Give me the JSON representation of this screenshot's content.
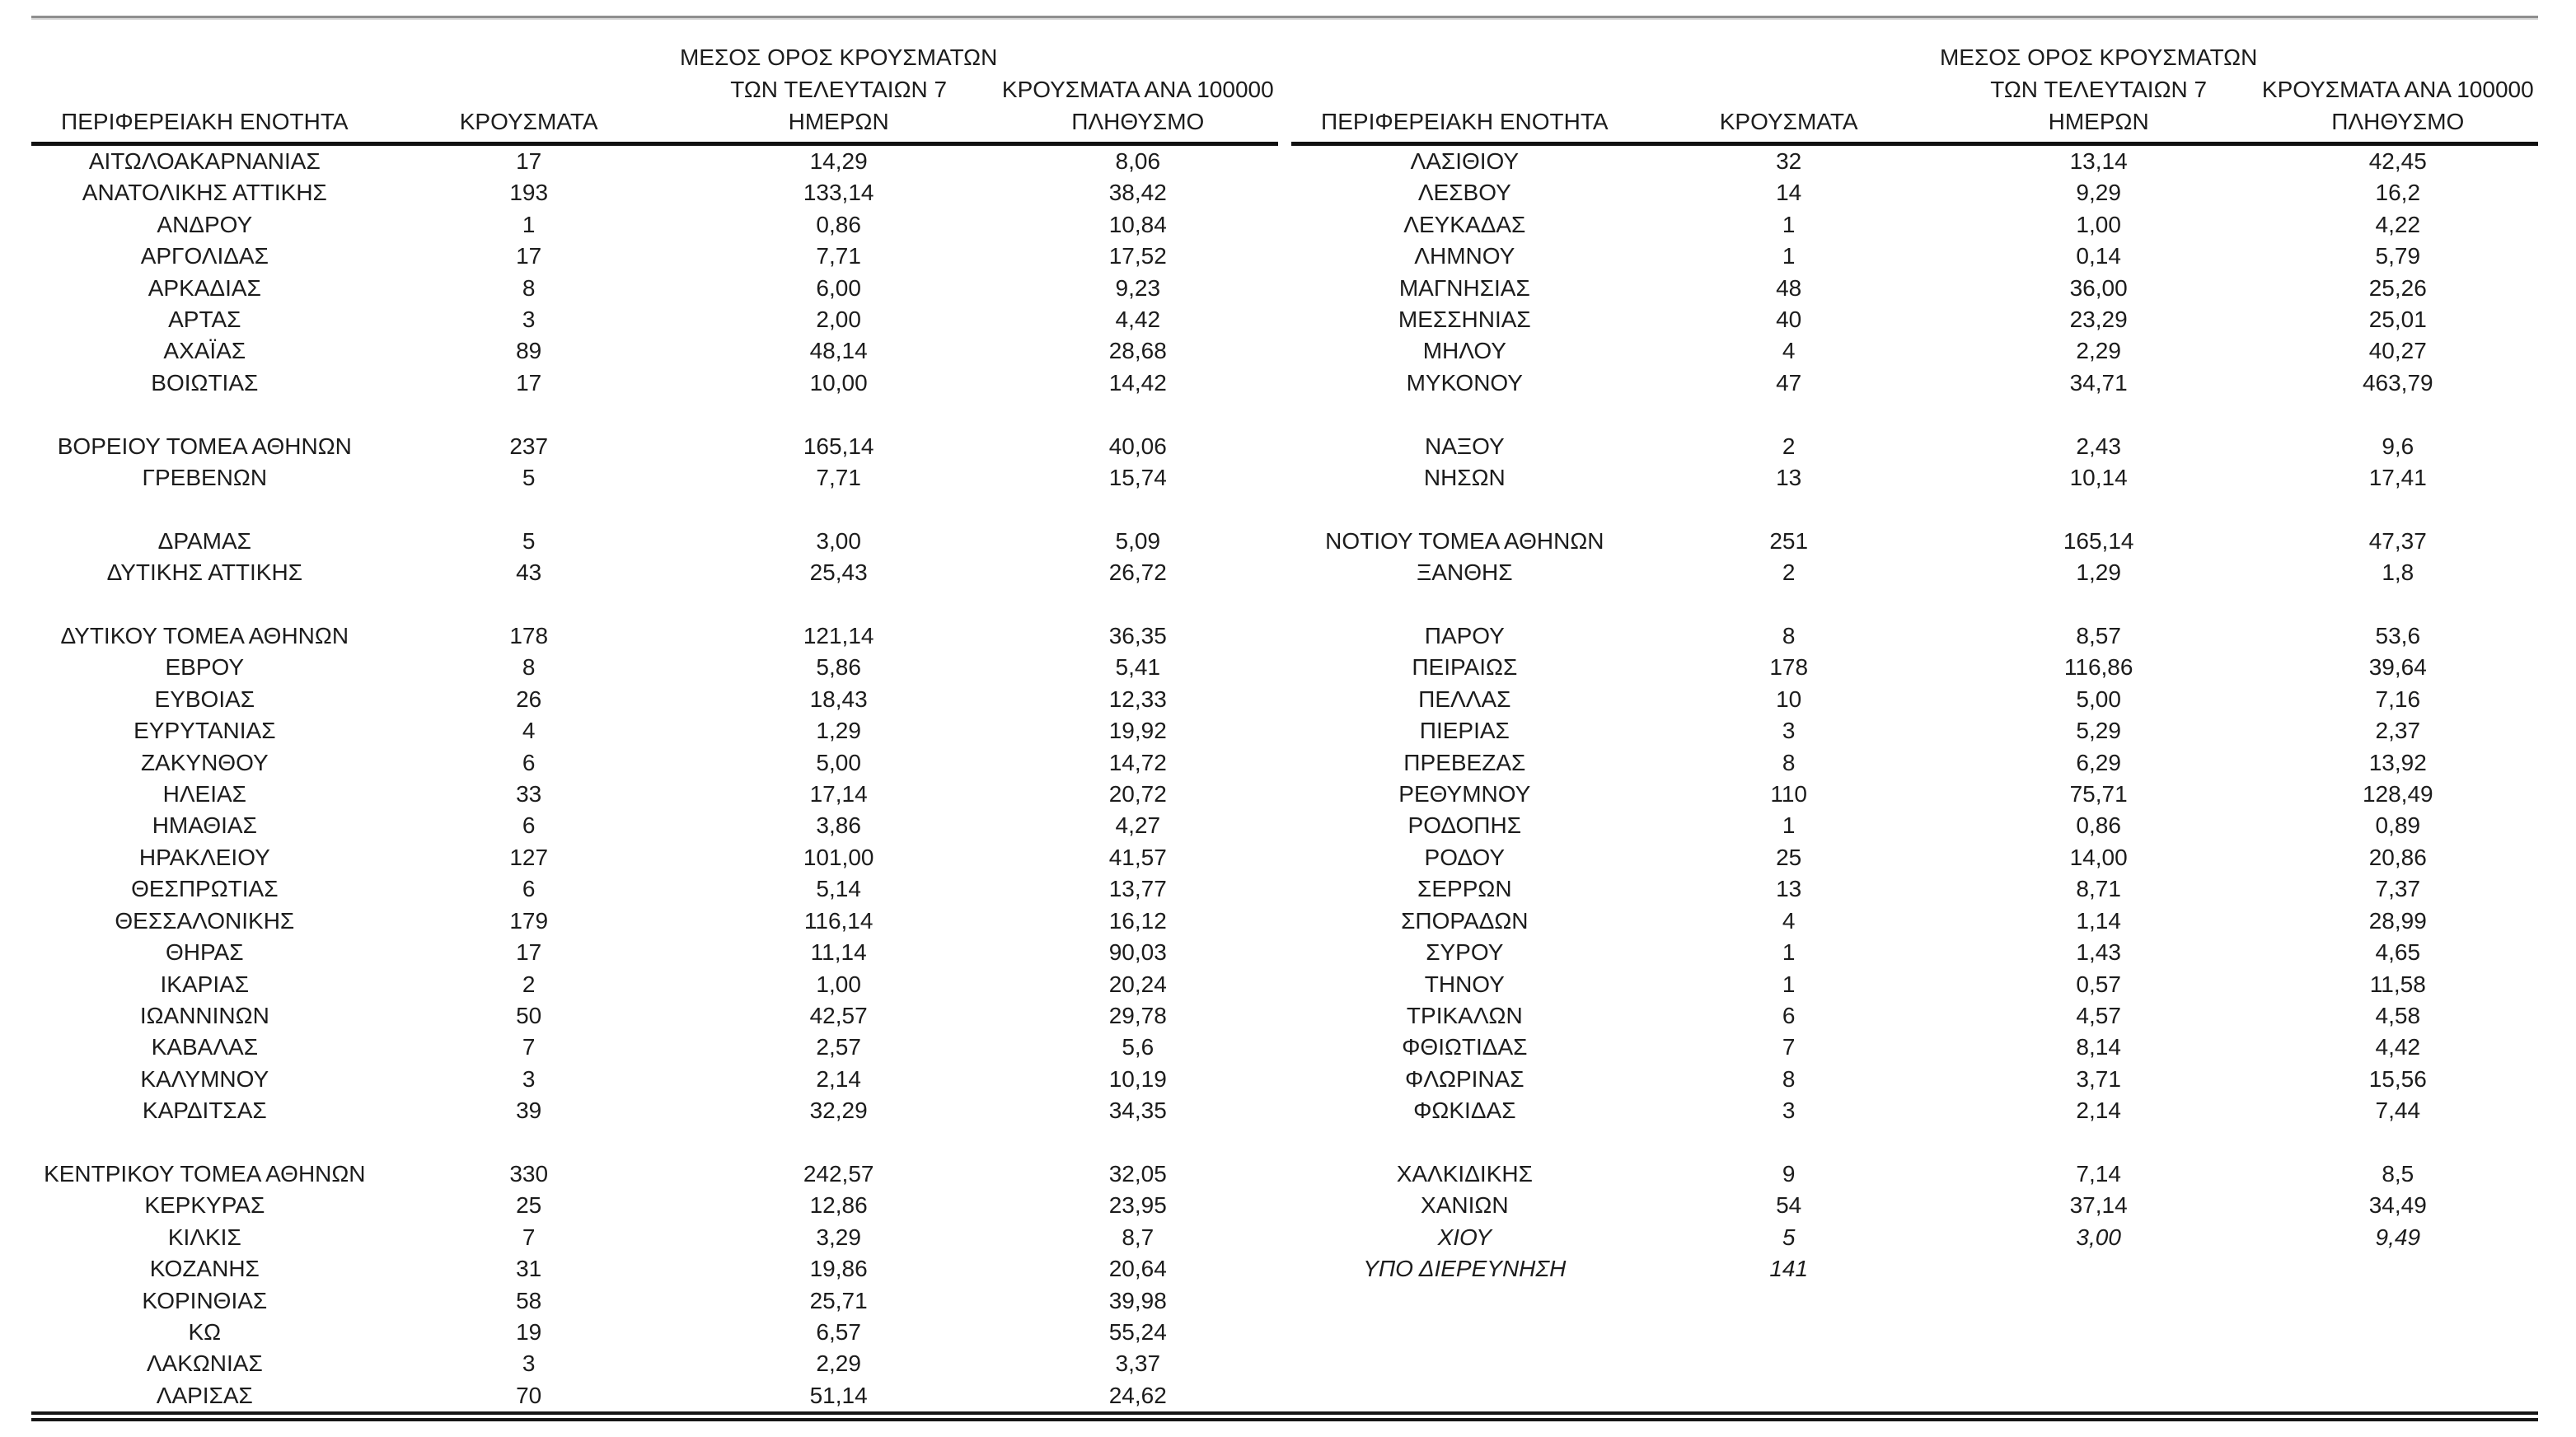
{
  "headers": {
    "region": "ΠΕΡΙΦΕΡΕΙΑΚΗ ΕΝΟΤΗΤΑ",
    "cases": "ΚΡΟΥΣΜΑΤΑ",
    "avg7_lines": [
      "ΜΕΣΟΣ ΟΡΟΣ ΚΡΟΥΣΜΑΤΩΝ",
      "ΤΩΝ ΤΕΛΕΥΤΑΙΩΝ 7",
      "ΗΜΕΡΩΝ"
    ],
    "per100k_lines": [
      "ΚΡΟΥΣΜΑΤΑ ΑΝΑ 100000",
      "ΠΛΗΘΥΣΜΟ"
    ]
  },
  "tables": [
    {
      "rows": [
        {
          "region": "ΑΙΤΩΛΟΑΚΑΡΝΑΝΙΑΣ",
          "cases": "17",
          "avg7": "14,29",
          "per100k": "8,06"
        },
        {
          "region": "ΑΝΑΤΟΛΙΚΗΣ ΑΤΤΙΚΗΣ",
          "cases": "193",
          "avg7": "133,14",
          "per100k": "38,42"
        },
        {
          "region": "ΑΝΔΡΟΥ",
          "cases": "1",
          "avg7": "0,86",
          "per100k": "10,84"
        },
        {
          "region": "ΑΡΓΟΛΙΔΑΣ",
          "cases": "17",
          "avg7": "7,71",
          "per100k": "17,52"
        },
        {
          "region": "ΑΡΚΑΔΙΑΣ",
          "cases": "8",
          "avg7": "6,00",
          "per100k": "9,23"
        },
        {
          "region": "ΑΡΤΑΣ",
          "cases": "3",
          "avg7": "2,00",
          "per100k": "4,42"
        },
        {
          "region": "ΑΧΑΪΑΣ",
          "cases": "89",
          "avg7": "48,14",
          "per100k": "28,68"
        },
        {
          "region": "ΒΟΙΩΤΙΑΣ",
          "cases": "17",
          "avg7": "10,00",
          "per100k": "14,42"
        },
        {
          "blank": true
        },
        {
          "region": "ΒΟΡΕΙΟΥ ΤΟΜΕΑ ΑΘΗΝΩΝ",
          "cases": "237",
          "avg7": "165,14",
          "per100k": "40,06"
        },
        {
          "region": "ΓΡΕΒΕΝΩΝ",
          "cases": "5",
          "avg7": "7,71",
          "per100k": "15,74"
        },
        {
          "blank": true
        },
        {
          "region": "ΔΡΑΜΑΣ",
          "cases": "5",
          "avg7": "3,00",
          "per100k": "5,09"
        },
        {
          "region": "ΔΥΤΙΚΗΣ ΑΤΤΙΚΗΣ",
          "cases": "43",
          "avg7": "25,43",
          "per100k": "26,72"
        },
        {
          "blank": true
        },
        {
          "region": "ΔΥΤΙΚΟΥ ΤΟΜΕΑ ΑΘΗΝΩΝ",
          "cases": "178",
          "avg7": "121,14",
          "per100k": "36,35"
        },
        {
          "region": "ΕΒΡΟΥ",
          "cases": "8",
          "avg7": "5,86",
          "per100k": "5,41"
        },
        {
          "region": "ΕΥΒΟΙΑΣ",
          "cases": "26",
          "avg7": "18,43",
          "per100k": "12,33"
        },
        {
          "region": "ΕΥΡΥΤΑΝΙΑΣ",
          "cases": "4",
          "avg7": "1,29",
          "per100k": "19,92"
        },
        {
          "region": "ΖΑΚΥΝΘΟΥ",
          "cases": "6",
          "avg7": "5,00",
          "per100k": "14,72"
        },
        {
          "region": "ΗΛΕΙΑΣ",
          "cases": "33",
          "avg7": "17,14",
          "per100k": "20,72"
        },
        {
          "region": "ΗΜΑΘΙΑΣ",
          "cases": "6",
          "avg7": "3,86",
          "per100k": "4,27"
        },
        {
          "region": "ΗΡΑΚΛΕΙΟΥ",
          "cases": "127",
          "avg7": "101,00",
          "per100k": "41,57"
        },
        {
          "region": "ΘΕΣΠΡΩΤΙΑΣ",
          "cases": "6",
          "avg7": "5,14",
          "per100k": "13,77"
        },
        {
          "region": "ΘΕΣΣΑΛΟΝΙΚΗΣ",
          "cases": "179",
          "avg7": "116,14",
          "per100k": "16,12"
        },
        {
          "region": "ΘΗΡΑΣ",
          "cases": "17",
          "avg7": "11,14",
          "per100k": "90,03"
        },
        {
          "region": "ΙΚΑΡΙΑΣ",
          "cases": "2",
          "avg7": "1,00",
          "per100k": "20,24"
        },
        {
          "region": "ΙΩΑΝΝΙΝΩΝ",
          "cases": "50",
          "avg7": "42,57",
          "per100k": "29,78"
        },
        {
          "region": "ΚΑΒΑΛΑΣ",
          "cases": "7",
          "avg7": "2,57",
          "per100k": "5,6"
        },
        {
          "region": "ΚΑΛΥΜΝΟΥ",
          "cases": "3",
          "avg7": "2,14",
          "per100k": "10,19"
        },
        {
          "region": "ΚΑΡΔΙΤΣΑΣ",
          "cases": "39",
          "avg7": "32,29",
          "per100k": "34,35"
        },
        {
          "blank": true
        },
        {
          "region": "ΚΕΝΤΡΙΚΟΥ ΤΟΜΕΑ ΑΘΗΝΩΝ",
          "cases": "330",
          "avg7": "242,57",
          "per100k": "32,05"
        },
        {
          "region": "ΚΕΡΚΥΡΑΣ",
          "cases": "25",
          "avg7": "12,86",
          "per100k": "23,95"
        },
        {
          "region": "ΚΙΛΚΙΣ",
          "cases": "7",
          "avg7": "3,29",
          "per100k": "8,7"
        },
        {
          "region": "ΚΟΖΑΝΗΣ",
          "cases": "31",
          "avg7": "19,86",
          "per100k": "20,64"
        },
        {
          "region": "ΚΟΡΙΝΘΙΑΣ",
          "cases": "58",
          "avg7": "25,71",
          "per100k": "39,98"
        },
        {
          "region": "ΚΩ",
          "cases": "19",
          "avg7": "6,57",
          "per100k": "55,24"
        },
        {
          "region": "ΛΑΚΩΝΙΑΣ",
          "cases": "3",
          "avg7": "2,29",
          "per100k": "3,37"
        },
        {
          "region": "ΛΑΡΙΣΑΣ",
          "cases": "70",
          "avg7": "51,14",
          "per100k": "24,62"
        }
      ]
    },
    {
      "rows": [
        {
          "region": "ΛΑΣΙΘΙΟΥ",
          "cases": "32",
          "avg7": "13,14",
          "per100k": "42,45"
        },
        {
          "region": "ΛΕΣΒΟΥ",
          "cases": "14",
          "avg7": "9,29",
          "per100k": "16,2"
        },
        {
          "region": "ΛΕΥΚΑΔΑΣ",
          "cases": "1",
          "avg7": "1,00",
          "per100k": "4,22"
        },
        {
          "region": "ΛΗΜΝΟΥ",
          "cases": "1",
          "avg7": "0,14",
          "per100k": "5,79"
        },
        {
          "region": "ΜΑΓΝΗΣΙΑΣ",
          "cases": "48",
          "avg7": "36,00",
          "per100k": "25,26"
        },
        {
          "region": "ΜΕΣΣΗΝΙΑΣ",
          "cases": "40",
          "avg7": "23,29",
          "per100k": "25,01"
        },
        {
          "region": "ΜΗΛΟΥ",
          "cases": "4",
          "avg7": "2,29",
          "per100k": "40,27"
        },
        {
          "region": "ΜΥΚΟΝΟΥ",
          "cases": "47",
          "avg7": "34,71",
          "per100k": "463,79"
        },
        {
          "blank": true
        },
        {
          "region": "ΝΑΞΟΥ",
          "cases": "2",
          "avg7": "2,43",
          "per100k": "9,6"
        },
        {
          "region": "ΝΗΣΩΝ",
          "cases": "13",
          "avg7": "10,14",
          "per100k": "17,41"
        },
        {
          "blank": true
        },
        {
          "region": "ΝΟΤΙΟΥ ΤΟΜΕΑ ΑΘΗΝΩΝ",
          "cases": "251",
          "avg7": "165,14",
          "per100k": "47,37"
        },
        {
          "region": "ΞΑΝΘΗΣ",
          "cases": "2",
          "avg7": "1,29",
          "per100k": "1,8"
        },
        {
          "blank": true
        },
        {
          "region": "ΠΑΡΟΥ",
          "cases": "8",
          "avg7": "8,57",
          "per100k": "53,6"
        },
        {
          "region": "ΠΕΙΡΑΙΩΣ",
          "cases": "178",
          "avg7": "116,86",
          "per100k": "39,64"
        },
        {
          "region": "ΠΕΛΛΑΣ",
          "cases": "10",
          "avg7": "5,00",
          "per100k": "7,16"
        },
        {
          "region": "ΠΙΕΡΙΑΣ",
          "cases": "3",
          "avg7": "5,29",
          "per100k": "2,37"
        },
        {
          "region": "ΠΡΕΒΕΖΑΣ",
          "cases": "8",
          "avg7": "6,29",
          "per100k": "13,92"
        },
        {
          "region": "ΡΕΘΥΜΝΟΥ",
          "cases": "110",
          "avg7": "75,71",
          "per100k": "128,49"
        },
        {
          "region": "ΡΟΔΟΠΗΣ",
          "cases": "1",
          "avg7": "0,86",
          "per100k": "0,89"
        },
        {
          "region": "ΡΟΔΟΥ",
          "cases": "25",
          "avg7": "14,00",
          "per100k": "20,86"
        },
        {
          "region": "ΣΕΡΡΩΝ",
          "cases": "13",
          "avg7": "8,71",
          "per100k": "7,37"
        },
        {
          "region": "ΣΠΟΡΑΔΩΝ",
          "cases": "4",
          "avg7": "1,14",
          "per100k": "28,99"
        },
        {
          "region": "ΣΥΡΟΥ",
          "cases": "1",
          "avg7": "1,43",
          "per100k": "4,65"
        },
        {
          "region": "ΤΗΝΟΥ",
          "cases": "1",
          "avg7": "0,57",
          "per100k": "11,58"
        },
        {
          "region": "ΤΡΙΚΑΛΩΝ",
          "cases": "6",
          "avg7": "4,57",
          "per100k": "4,58"
        },
        {
          "region": "ΦΘΙΩΤΙΔΑΣ",
          "cases": "7",
          "avg7": "8,14",
          "per100k": "4,42"
        },
        {
          "region": "ΦΛΩΡΙΝΑΣ",
          "cases": "8",
          "avg7": "3,71",
          "per100k": "15,56"
        },
        {
          "region": "ΦΩΚΙΔΑΣ",
          "cases": "3",
          "avg7": "2,14",
          "per100k": "7,44"
        },
        {
          "blank": true
        },
        {
          "region": "ΧΑΛΚΙΔΙΚΗΣ",
          "cases": "9",
          "avg7": "7,14",
          "per100k": "8,5"
        },
        {
          "region": "ΧΑΝΙΩΝ",
          "cases": "54",
          "avg7": "37,14",
          "per100k": "34,49"
        },
        {
          "region": "ΧΙΟΥ",
          "cases": "5",
          "avg7": "3,00",
          "per100k": "9,49",
          "italic": true
        },
        {
          "region": "ΥΠΟ ΔΙΕΡΕΥΝΗΣΗ",
          "cases": "141",
          "avg7": "",
          "per100k": "",
          "italic": true
        },
        {
          "blank": true
        },
        {
          "blank": true
        },
        {
          "blank": true
        },
        {
          "blank": true
        }
      ]
    }
  ]
}
